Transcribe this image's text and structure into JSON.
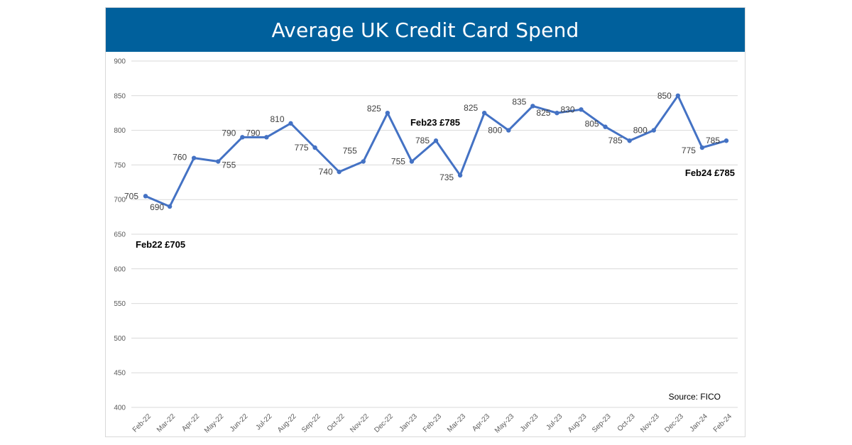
{
  "title": "Average UK Credit Card Spend",
  "source": "Source: FICO",
  "colors": {
    "header": "#00609c",
    "line": "#4472c4",
    "grid": "#d9d9d9"
  },
  "chart_data": {
    "type": "line",
    "title": "Average UK Credit Card Spend",
    "xlabel": "",
    "ylabel": "",
    "ylim": [
      400,
      900
    ],
    "yticks": [
      400,
      450,
      500,
      550,
      600,
      650,
      700,
      750,
      800,
      850,
      900
    ],
    "grid": true,
    "categories": [
      "Feb-22",
      "Mar-22",
      "Apr-22",
      "May-22",
      "Jun-22",
      "Jul-22",
      "Aug-22",
      "Sep-22",
      "Oct-22",
      "Nov-22",
      "Dec-22",
      "Jan-23",
      "Feb-23",
      "Mar-23",
      "Apr-23",
      "May-23",
      "Jun-23",
      "Jul-23",
      "Aug-23",
      "Sep-23",
      "Oct-23",
      "Nov-23",
      "Dec-23",
      "Jan-24",
      "Feb-24"
    ],
    "series": [
      {
        "values": [
          705,
          690,
          760,
          755,
          790,
          790,
          810,
          775,
          740,
          755,
          825,
          755,
          785,
          735,
          825,
          800,
          835,
          825,
          830,
          805,
          785,
          800,
          850,
          775,
          785
        ]
      }
    ],
    "annotations": [
      {
        "text": "Feb22 £705",
        "category": "Feb-22"
      },
      {
        "text": "Feb23 £785",
        "category": "Feb-23"
      },
      {
        "text": "Feb24 £785",
        "category": "Feb-24"
      }
    ]
  }
}
